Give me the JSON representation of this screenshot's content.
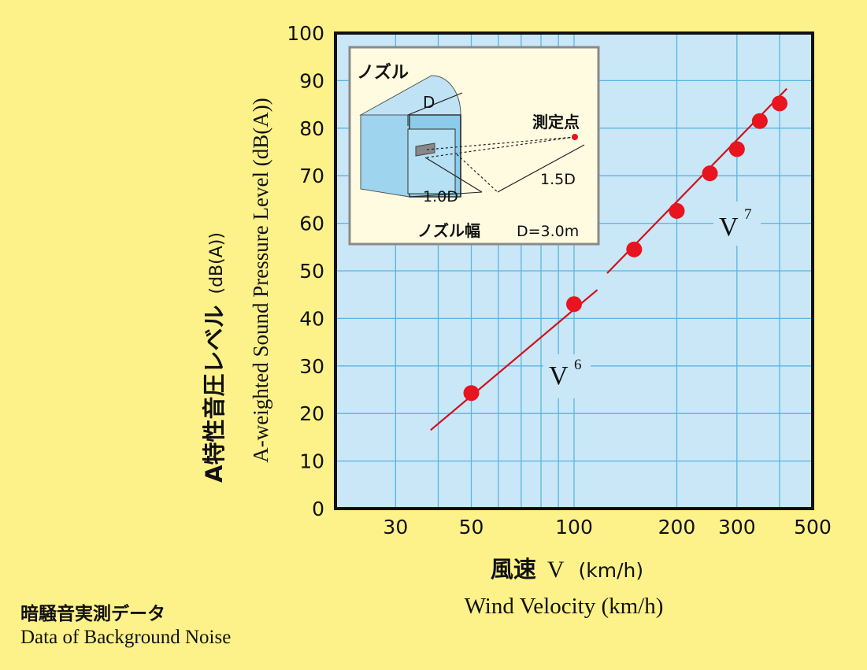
{
  "chart_data": {
    "type": "scatter",
    "x_scale": "log",
    "xlim": [
      20,
      500
    ],
    "ylim": [
      0,
      100
    ],
    "grid": true,
    "x_ticks": [
      30,
      50,
      100,
      200,
      300,
      500
    ],
    "x_minor_ticks": [
      20,
      40,
      60,
      70,
      80,
      90,
      400
    ],
    "y_ticks": [
      0,
      10,
      20,
      30,
      40,
      50,
      60,
      70,
      80,
      90,
      100
    ],
    "x_tick_labels": [
      "30",
      "50",
      "100",
      "200",
      "300",
      "500"
    ],
    "y_tick_labels": [
      "0",
      "10",
      "20",
      "30",
      "40",
      "50",
      "60",
      "70",
      "80",
      "90",
      "100"
    ],
    "xlabel_jp_main": "風速",
    "xlabel_jp_var": "V",
    "xlabel_jp_unit": "(km/h)",
    "xlabel_en": "Wind Velocity (km/h)",
    "ylabel_jp": "A特性音圧レベル",
    "ylabel_jp_unit": "(dB(A))",
    "ylabel_en": "A-weighted Sound Pressure Level (dB(A))",
    "points": [
      {
        "x": 50,
        "y": 24.3
      },
      {
        "x": 100,
        "y": 43
      },
      {
        "x": 150,
        "y": 54.5
      },
      {
        "x": 200,
        "y": 62.6
      },
      {
        "x": 250,
        "y": 70.5
      },
      {
        "x": 300,
        "y": 75.6
      },
      {
        "x": 350,
        "y": 81.5
      },
      {
        "x": 400,
        "y": 85.2
      }
    ],
    "fit_lines": [
      {
        "label_base": "V",
        "label_exp": "6",
        "x": [
          38,
          117
        ],
        "y": [
          16.5,
          46
        ]
      },
      {
        "label_base": "V",
        "label_exp": "7",
        "x": [
          125,
          420
        ],
        "y": [
          49.5,
          88.3
        ]
      }
    ],
    "colors": {
      "background": "#fdf28a",
      "plot_background": "#c9e7f7",
      "grid": "#5bb4e0",
      "points": "#e8141f",
      "line": "#d0101a",
      "axis": "#111111"
    }
  },
  "inset": {
    "title": "ノズル",
    "d_label": "D",
    "point_label": "測定点",
    "dist1_label": "1.0D",
    "dist2_label": "1.5D",
    "width_label": "ノズル幅",
    "size_label": "D=3.0m"
  },
  "caption": {
    "jp": "暗騒音実測データ",
    "en": "Data of Background Noise"
  }
}
